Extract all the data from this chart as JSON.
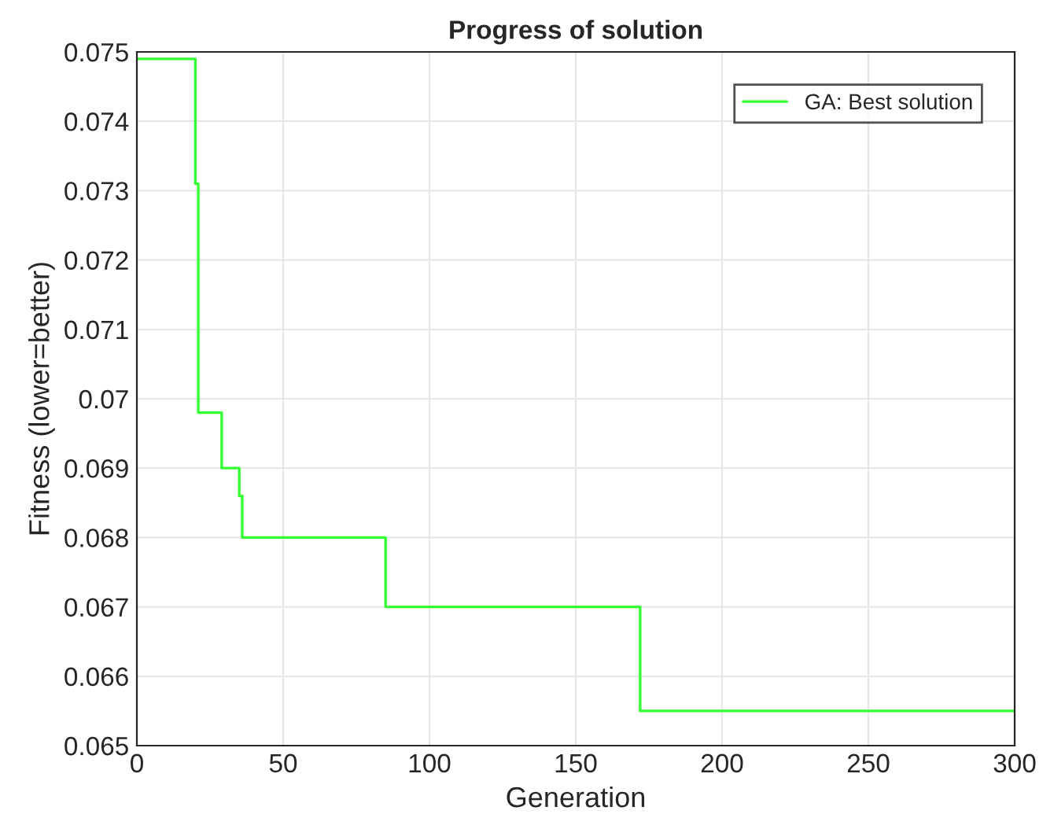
{
  "chart_data": {
    "type": "step",
    "title": "Progress of solution",
    "xlabel": "Generation",
    "ylabel": "Fitness (lower=better)",
    "x": [
      0,
      20,
      21,
      29,
      35,
      36,
      85,
      172,
      300
    ],
    "series": [
      {
        "name": "GA: Best solution",
        "color": "#33ff33",
        "values": [
          0.0749,
          0.0731,
          0.0698,
          0.069,
          0.0686,
          0.068,
          0.067,
          0.0655,
          0.0655
        ]
      }
    ],
    "xlim": [
      0,
      300
    ],
    "xticks": [
      0,
      50,
      100,
      150,
      200,
      250,
      300
    ],
    "ylim": [
      0.065,
      0.075
    ],
    "yticks": [
      0.065,
      0.066,
      0.067,
      0.068,
      0.069,
      {
        "value": 0.07,
        "label": "0.07"
      },
      0.071,
      0.072,
      0.073,
      0.074,
      0.075
    ],
    "grid": true,
    "legend": "top right"
  }
}
